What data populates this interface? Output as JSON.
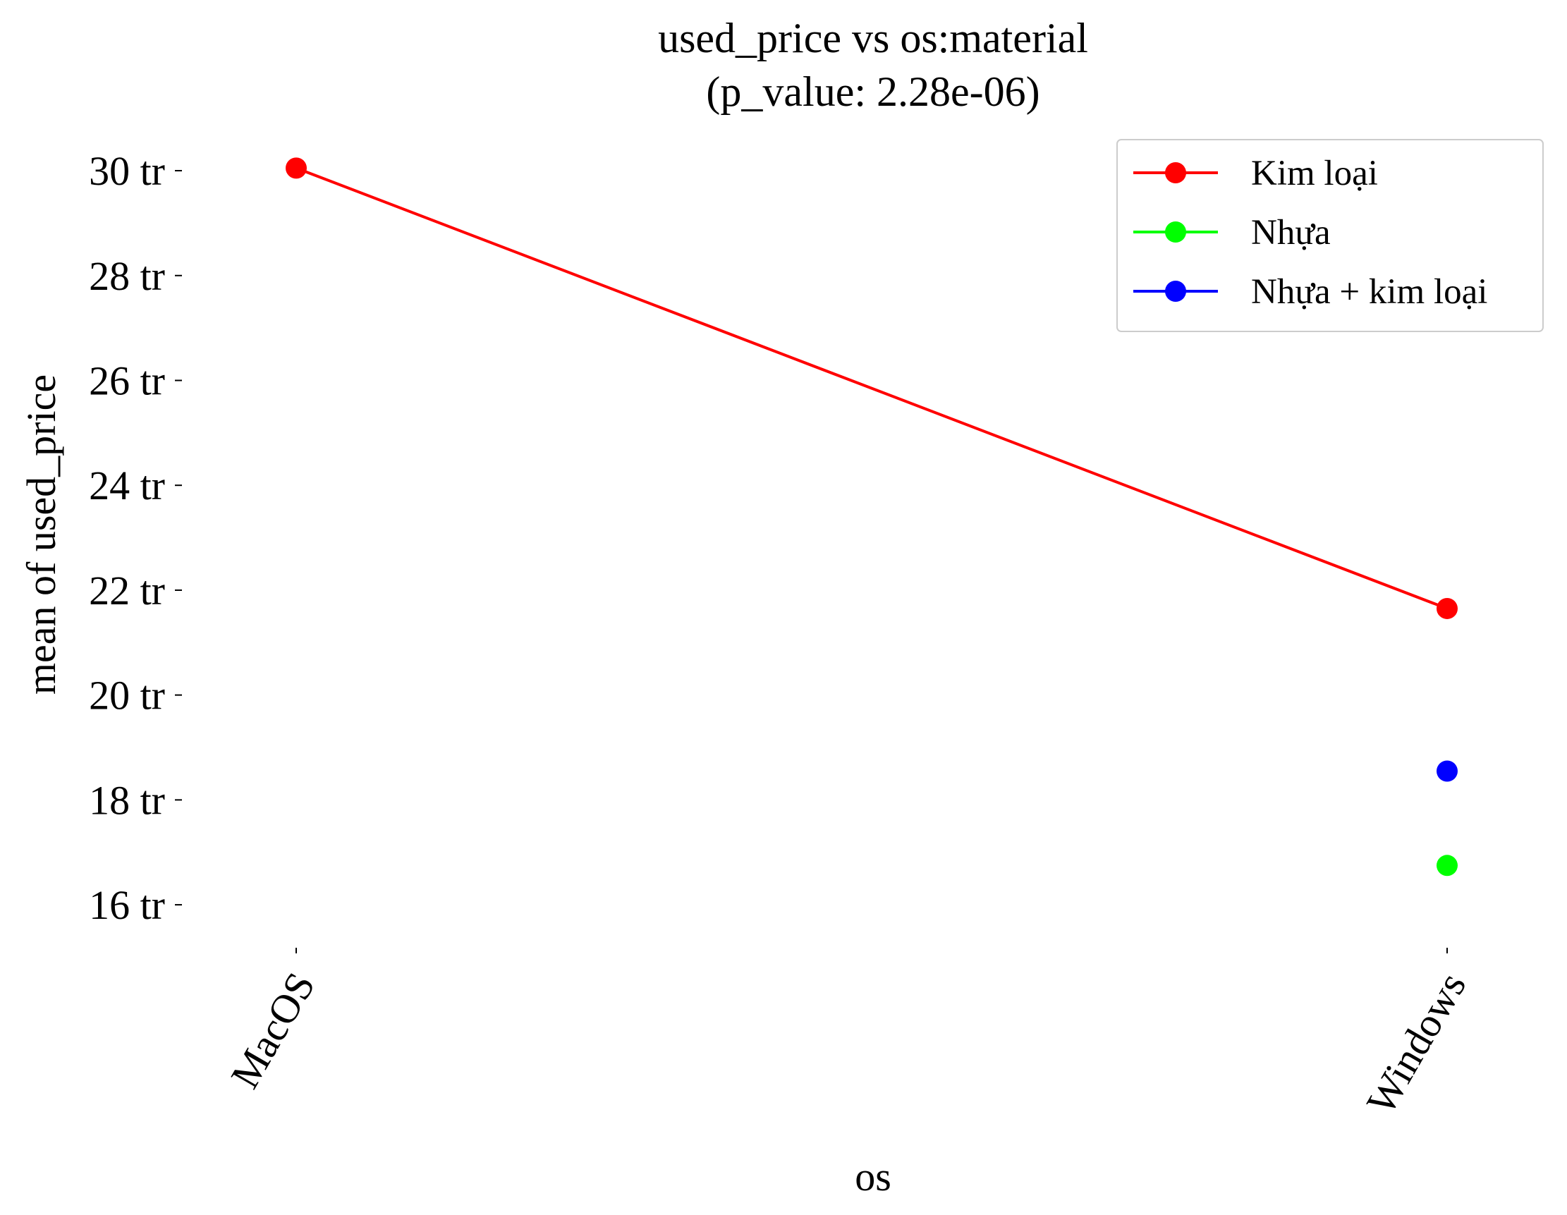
{
  "chart_data": {
    "type": "line",
    "title": "used_price vs os:material",
    "subtitle": "(p_value: 2.28e-06)",
    "xlabel": "os",
    "ylabel": "mean of used_price",
    "categories": [
      "MacOS",
      "Windows"
    ],
    "y_ticks": [
      16,
      18,
      20,
      22,
      24,
      26,
      28,
      30
    ],
    "y_tick_labels": [
      "16 tr",
      "18 tr",
      "20 tr",
      "22 tr",
      "24 tr",
      "26 tr",
      "28 tr",
      "30 tr"
    ],
    "ylim": [
      15.1,
      30.7
    ],
    "grid": false,
    "legend_position": "top-right",
    "series": [
      {
        "name": "Kim loại",
        "color": "#ff0000",
        "values": [
          30.05,
          21.65
        ]
      },
      {
        "name": "Nhựa",
        "color": "#00ff00",
        "values": [
          null,
          16.75
        ]
      },
      {
        "name": "Nhựa + kim loại",
        "color": "#0000ff",
        "values": [
          null,
          18.55
        ]
      }
    ]
  }
}
